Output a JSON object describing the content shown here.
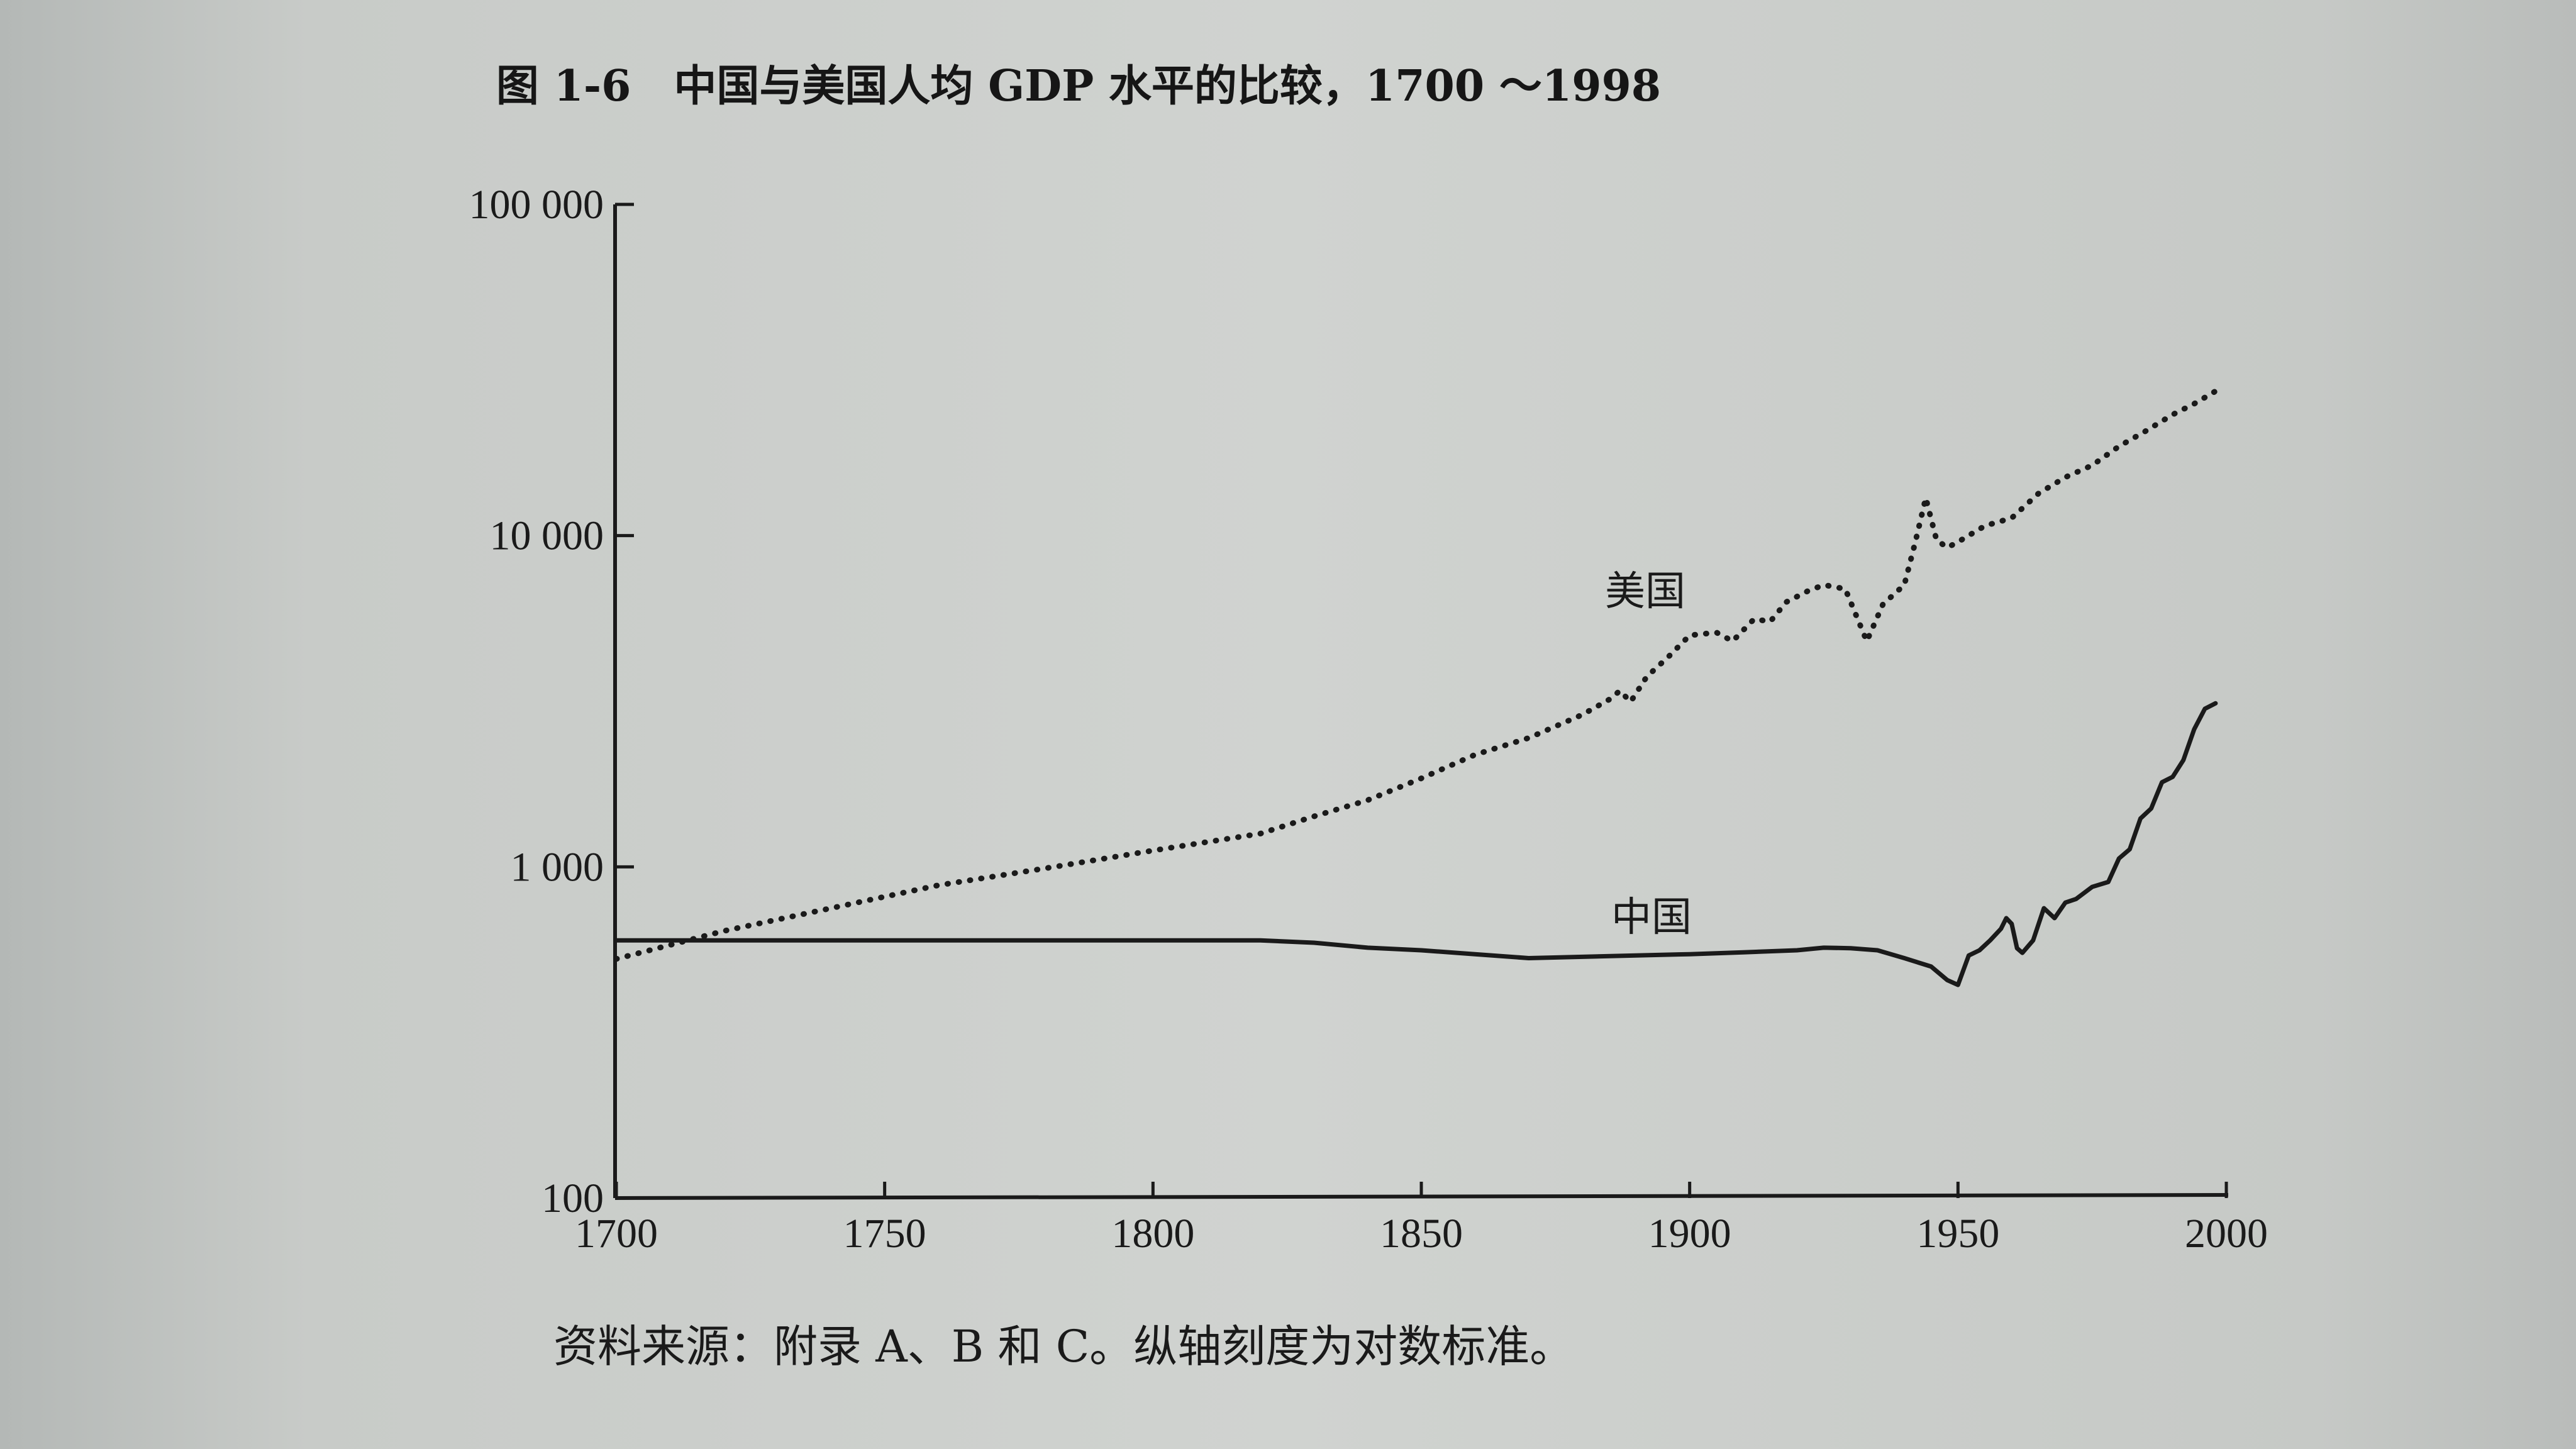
{
  "chart_data": {
    "type": "line",
    "title": "图 1-6　中国与美国人均 GDP 水平的比较，1700 ～1998",
    "source_note": "资料来源：附录 A、B 和 C。纵轴刻度为对数标准。",
    "x_ticks": [
      "1700",
      "1750",
      "1800",
      "1850",
      "1900",
      "1950",
      "2000"
    ],
    "y_ticks": [
      "100",
      "1 000",
      "10 000",
      "100 000"
    ],
    "xlim": [
      1700,
      2000
    ],
    "ylim": [
      100,
      100000
    ],
    "y_scale": "log",
    "series": [
      {
        "name": "美国",
        "style": "dotted",
        "color": "#1a1a1a",
        "points": [
          [
            1700,
            527
          ],
          [
            1720,
            640
          ],
          [
            1740,
            750
          ],
          [
            1760,
            880
          ],
          [
            1780,
            990
          ],
          [
            1800,
            1120
          ],
          [
            1820,
            1260
          ],
          [
            1830,
            1420
          ],
          [
            1840,
            1590
          ],
          [
            1850,
            1850
          ],
          [
            1860,
            2180
          ],
          [
            1870,
            2450
          ],
          [
            1880,
            2880
          ],
          [
            1885,
            3200
          ],
          [
            1887,
            3400
          ],
          [
            1889,
            3150
          ],
          [
            1892,
            3750
          ],
          [
            1896,
            4300
          ],
          [
            1900,
            5000
          ],
          [
            1905,
            5100
          ],
          [
            1908,
            4800
          ],
          [
            1912,
            5600
          ],
          [
            1915,
            5500
          ],
          [
            1918,
            6300
          ],
          [
            1922,
            6800
          ],
          [
            1925,
            7100
          ],
          [
            1929,
            6900
          ],
          [
            1933,
            4800
          ],
          [
            1936,
            6200
          ],
          [
            1940,
            7100
          ],
          [
            1942,
            9500
          ],
          [
            1944,
            13000
          ],
          [
            1946,
            9700
          ],
          [
            1948,
            9200
          ],
          [
            1950,
            9570
          ],
          [
            1955,
            10700
          ],
          [
            1960,
            11300
          ],
          [
            1965,
            13400
          ],
          [
            1970,
            15000
          ],
          [
            1975,
            16300
          ],
          [
            1980,
            18600
          ],
          [
            1985,
            20700
          ],
          [
            1990,
            23200
          ],
          [
            1994,
            25000
          ],
          [
            1998,
            27300
          ]
        ]
      },
      {
        "name": "中国",
        "style": "solid",
        "color": "#1a1a1a",
        "points": [
          [
            1700,
            600
          ],
          [
            1760,
            600
          ],
          [
            1820,
            600
          ],
          [
            1830,
            590
          ],
          [
            1840,
            570
          ],
          [
            1850,
            560
          ],
          [
            1860,
            545
          ],
          [
            1870,
            530
          ],
          [
            1880,
            535
          ],
          [
            1890,
            540
          ],
          [
            1900,
            545
          ],
          [
            1910,
            552
          ],
          [
            1920,
            560
          ],
          [
            1925,
            570
          ],
          [
            1930,
            568
          ],
          [
            1935,
            560
          ],
          [
            1940,
            530
          ],
          [
            1945,
            500
          ],
          [
            1948,
            455
          ],
          [
            1950,
            440
          ],
          [
            1952,
            540
          ],
          [
            1954,
            560
          ],
          [
            1956,
            600
          ],
          [
            1958,
            650
          ],
          [
            1959,
            700
          ],
          [
            1960,
            673
          ],
          [
            1961,
            568
          ],
          [
            1962,
            550
          ],
          [
            1964,
            600
          ],
          [
            1966,
            750
          ],
          [
            1968,
            700
          ],
          [
            1970,
            780
          ],
          [
            1972,
            800
          ],
          [
            1975,
            870
          ],
          [
            1978,
            900
          ],
          [
            1980,
            1060
          ],
          [
            1982,
            1130
          ],
          [
            1984,
            1400
          ],
          [
            1986,
            1500
          ],
          [
            1988,
            1800
          ],
          [
            1990,
            1870
          ],
          [
            1992,
            2100
          ],
          [
            1994,
            2600
          ],
          [
            1996,
            3000
          ],
          [
            1998,
            3117
          ]
        ]
      }
    ],
    "annotations": [
      {
        "text": "美国",
        "series": "美国"
      },
      {
        "text": "中国",
        "series": "中国"
      }
    ]
  }
}
